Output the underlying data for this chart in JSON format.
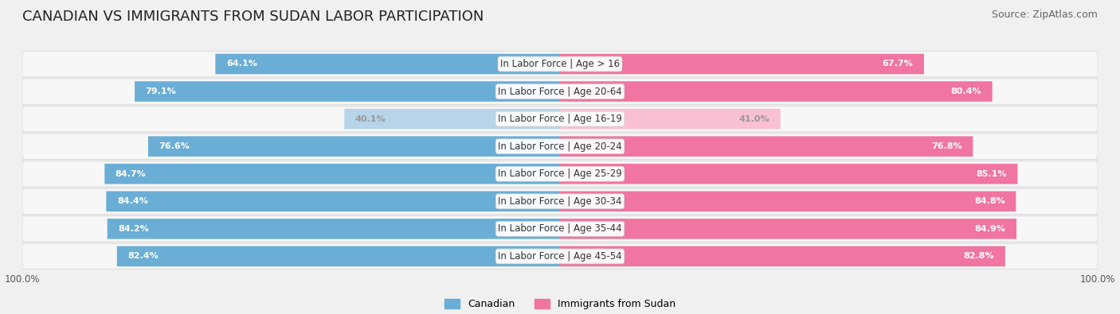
{
  "title": "CANADIAN VS IMMIGRANTS FROM SUDAN LABOR PARTICIPATION",
  "source": "Source: ZipAtlas.com",
  "categories": [
    "In Labor Force | Age > 16",
    "In Labor Force | Age 20-64",
    "In Labor Force | Age 16-19",
    "In Labor Force | Age 20-24",
    "In Labor Force | Age 25-29",
    "In Labor Force | Age 30-34",
    "In Labor Force | Age 35-44",
    "In Labor Force | Age 45-54"
  ],
  "canadian_values": [
    64.1,
    79.1,
    40.1,
    76.6,
    84.7,
    84.4,
    84.2,
    82.4
  ],
  "sudan_values": [
    67.7,
    80.4,
    41.0,
    76.8,
    85.1,
    84.8,
    84.9,
    82.8
  ],
  "faded_row": 2,
  "canadian_color": "#6aaed6",
  "canadian_color_faded": "#b8d4e8",
  "sudan_color": "#f075a0",
  "sudan_color_faded": "#f9c0d4",
  "background_color": "#f0f0f0",
  "title_fontsize": 13,
  "source_fontsize": 9,
  "label_fontsize": 8.5,
  "value_fontsize": 8,
  "legend_fontsize": 9,
  "max_value": 100.0,
  "bar_height": 0.72,
  "row_bg_color": "#f7f7f7",
  "row_border_color": "#d0d0d0"
}
